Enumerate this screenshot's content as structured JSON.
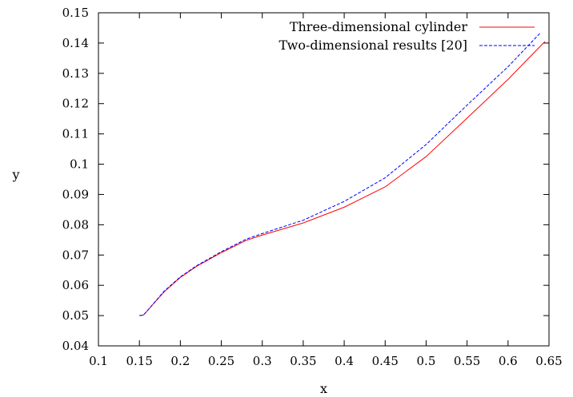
{
  "chart_data": {
    "type": "line",
    "title": "",
    "xlabel": "x",
    "ylabel": "y",
    "xlim": [
      0.1,
      0.65
    ],
    "ylim": [
      0.04,
      0.15
    ],
    "xticks": [
      "0.1",
      "0.15",
      "0.2",
      "0.25",
      "0.3",
      "0.35",
      "0.4",
      "0.45",
      "0.5",
      "0.55",
      "0.6",
      "0.65"
    ],
    "yticks": [
      "0.04",
      "0.05",
      "0.06",
      "0.07",
      "0.08",
      "0.09",
      "0.1",
      "0.11",
      "0.12",
      "0.13",
      "0.14",
      "0.15"
    ],
    "grid": false,
    "legend_position": "top-right",
    "series": [
      {
        "name": "Three-dimensional cylinder",
        "color": "#ff0000",
        "style": "solid",
        "x": [
          0.15,
          0.155,
          0.16,
          0.18,
          0.2,
          0.22,
          0.25,
          0.28,
          0.3,
          0.35,
          0.4,
          0.45,
          0.5,
          0.55,
          0.6,
          0.645
        ],
        "y": [
          0.05,
          0.0502,
          0.0517,
          0.0578,
          0.0626,
          0.0663,
          0.0708,
          0.0748,
          0.0766,
          0.0806,
          0.0858,
          0.0925,
          0.1025,
          0.1152,
          0.128,
          0.1405
        ]
      },
      {
        "name": "Two-dimensional results [20]",
        "color": "#0000ff",
        "style": "dashed",
        "x": [
          0.15,
          0.155,
          0.16,
          0.18,
          0.2,
          0.22,
          0.25,
          0.28,
          0.3,
          0.35,
          0.4,
          0.45,
          0.5,
          0.55,
          0.6,
          0.64
        ],
        "y": [
          0.05,
          0.0502,
          0.0517,
          0.058,
          0.0628,
          0.0665,
          0.0711,
          0.0752,
          0.0771,
          0.0815,
          0.0877,
          0.0955,
          0.1065,
          0.1195,
          0.1322,
          0.1435
        ]
      }
    ]
  }
}
